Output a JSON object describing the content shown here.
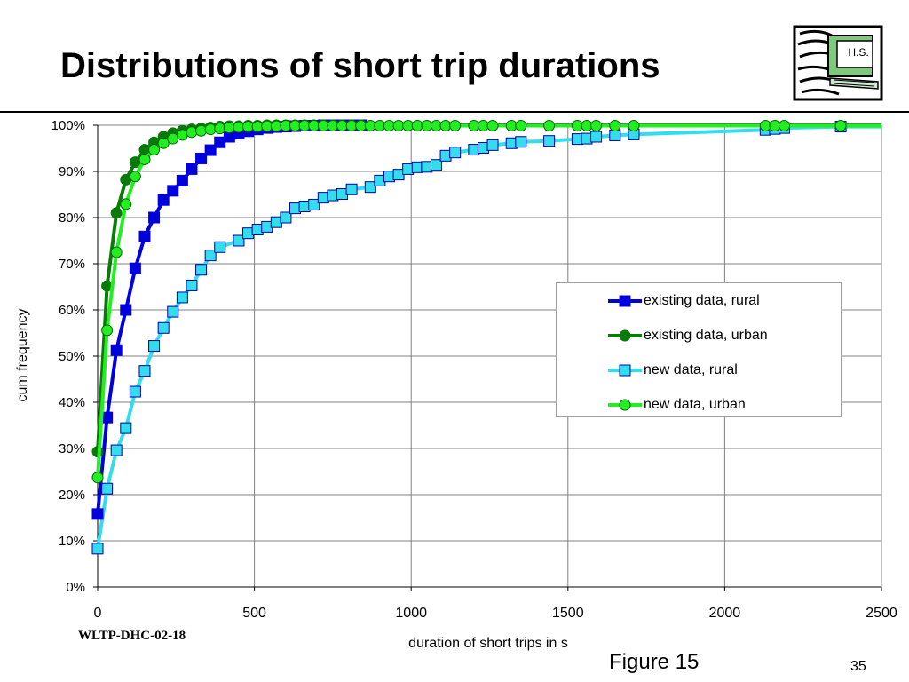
{
  "slide": {
    "title": "Distributions of short trip durations",
    "logo_text": "H.S.",
    "footer_id": "WLTP-DHC-02-18",
    "figure_label": "Figure 15",
    "page_number": "35"
  },
  "chart_data": {
    "type": "line",
    "title": "",
    "xlabel": "duration of short trips in s",
    "ylabel": "cum frequency",
    "xlim": [
      0,
      2500
    ],
    "ylim": [
      0,
      1
    ],
    "x_ticks": [
      "0",
      "500",
      "1000",
      "1500",
      "2000",
      "2500"
    ],
    "y_ticks": [
      "0%",
      "10%",
      "20%",
      "30%",
      "40%",
      "50%",
      "60%",
      "70%",
      "80%",
      "90%",
      "100%"
    ],
    "grid": true,
    "legend_position": "right",
    "series": [
      {
        "name": "existing data, rural",
        "color": "#0000dd",
        "marker": "square",
        "x": [
          0,
          30,
          60,
          90,
          120,
          150,
          180,
          210,
          240,
          270,
          300,
          330,
          360,
          390,
          420,
          450,
          480,
          510,
          540,
          570,
          600,
          630,
          660,
          690,
          720,
          750,
          780,
          810,
          840
        ],
        "y": [
          0.158,
          0.367,
          0.513,
          0.6,
          0.69,
          0.759,
          0.8,
          0.838,
          0.858,
          0.88,
          0.905,
          0.928,
          0.946,
          0.963,
          0.975,
          0.982,
          0.987,
          0.991,
          0.994,
          0.996,
          0.997,
          0.998,
          0.999,
          0.999,
          1.0,
          1.0,
          1.0,
          1.0,
          1.0
        ]
      },
      {
        "name": "existing data, urban",
        "color": "#0a7a0a",
        "marker": "circle",
        "x": [
          0,
          30,
          60,
          90,
          120,
          150,
          180,
          210,
          240,
          270,
          300,
          330,
          360,
          390,
          420,
          450,
          480,
          510,
          540,
          570,
          600,
          630,
          660,
          690,
          720,
          750,
          780,
          810,
          840
        ],
        "y": [
          0.293,
          0.652,
          0.81,
          0.882,
          0.92,
          0.947,
          0.963,
          0.975,
          0.983,
          0.988,
          0.991,
          0.993,
          0.995,
          0.997,
          0.998,
          0.998,
          0.999,
          0.999,
          1.0,
          1.0,
          1.0,
          1.0,
          1.0,
          1.0,
          1.0,
          1.0,
          1.0,
          1.0,
          1.0
        ]
      },
      {
        "name": "new data, rural",
        "color": "#33ddee",
        "marker": "square",
        "x": [
          0,
          30,
          60,
          90,
          120,
          150,
          180,
          210,
          240,
          270,
          300,
          330,
          360,
          390,
          450,
          480,
          510,
          540,
          570,
          600,
          630,
          660,
          690,
          720,
          750,
          780,
          810,
          870,
          900,
          930,
          960,
          990,
          1020,
          1050,
          1080,
          1110,
          1140,
          1200,
          1230,
          1260,
          1320,
          1350,
          1440,
          1530,
          1560,
          1590,
          1650,
          1710,
          2130,
          2160,
          2190,
          2370
        ],
        "y": [
          0.083,
          0.213,
          0.296,
          0.344,
          0.423,
          0.468,
          0.522,
          0.561,
          0.596,
          0.627,
          0.653,
          0.687,
          0.718,
          0.736,
          0.75,
          0.766,
          0.774,
          0.78,
          0.79,
          0.8,
          0.82,
          0.824,
          0.828,
          0.843,
          0.848,
          0.851,
          0.861,
          0.866,
          0.88,
          0.889,
          0.893,
          0.905,
          0.909,
          0.91,
          0.914,
          0.934,
          0.941,
          0.947,
          0.951,
          0.957,
          0.961,
          0.964,
          0.966,
          0.97,
          0.971,
          0.975,
          0.978,
          0.98,
          0.99,
          0.992,
          0.994,
          0.997
        ]
      },
      {
        "name": "new data, urban",
        "color": "#22ee22",
        "marker": "circle",
        "x": [
          0,
          30,
          60,
          90,
          120,
          150,
          180,
          210,
          240,
          270,
          300,
          330,
          360,
          390,
          420,
          450,
          480,
          510,
          540,
          570,
          600,
          630,
          660,
          690,
          720,
          750,
          780,
          810,
          840,
          870,
          900,
          930,
          960,
          990,
          1020,
          1050,
          1080,
          1110,
          1140,
          1200,
          1230,
          1260,
          1320,
          1350,
          1440,
          1530,
          1560,
          1590,
          1650,
          1710,
          2130,
          2160,
          2190,
          2370
        ],
        "y": [
          0.237,
          0.556,
          0.725,
          0.829,
          0.889,
          0.926,
          0.947,
          0.961,
          0.971,
          0.979,
          0.985,
          0.988,
          0.991,
          0.993,
          0.995,
          0.996,
          0.997,
          0.997,
          0.998,
          0.998,
          0.999,
          0.999,
          0.999,
          0.999,
          0.999,
          0.999,
          0.999,
          0.999,
          0.999,
          0.999,
          0.999,
          0.999,
          0.999,
          0.999,
          0.999,
          0.999,
          0.999,
          0.999,
          0.999,
          0.999,
          0.999,
          0.999,
          0.999,
          0.999,
          0.999,
          0.999,
          0.999,
          0.999,
          0.999,
          0.999,
          0.999,
          0.999,
          0.999,
          0.999
        ]
      }
    ]
  }
}
